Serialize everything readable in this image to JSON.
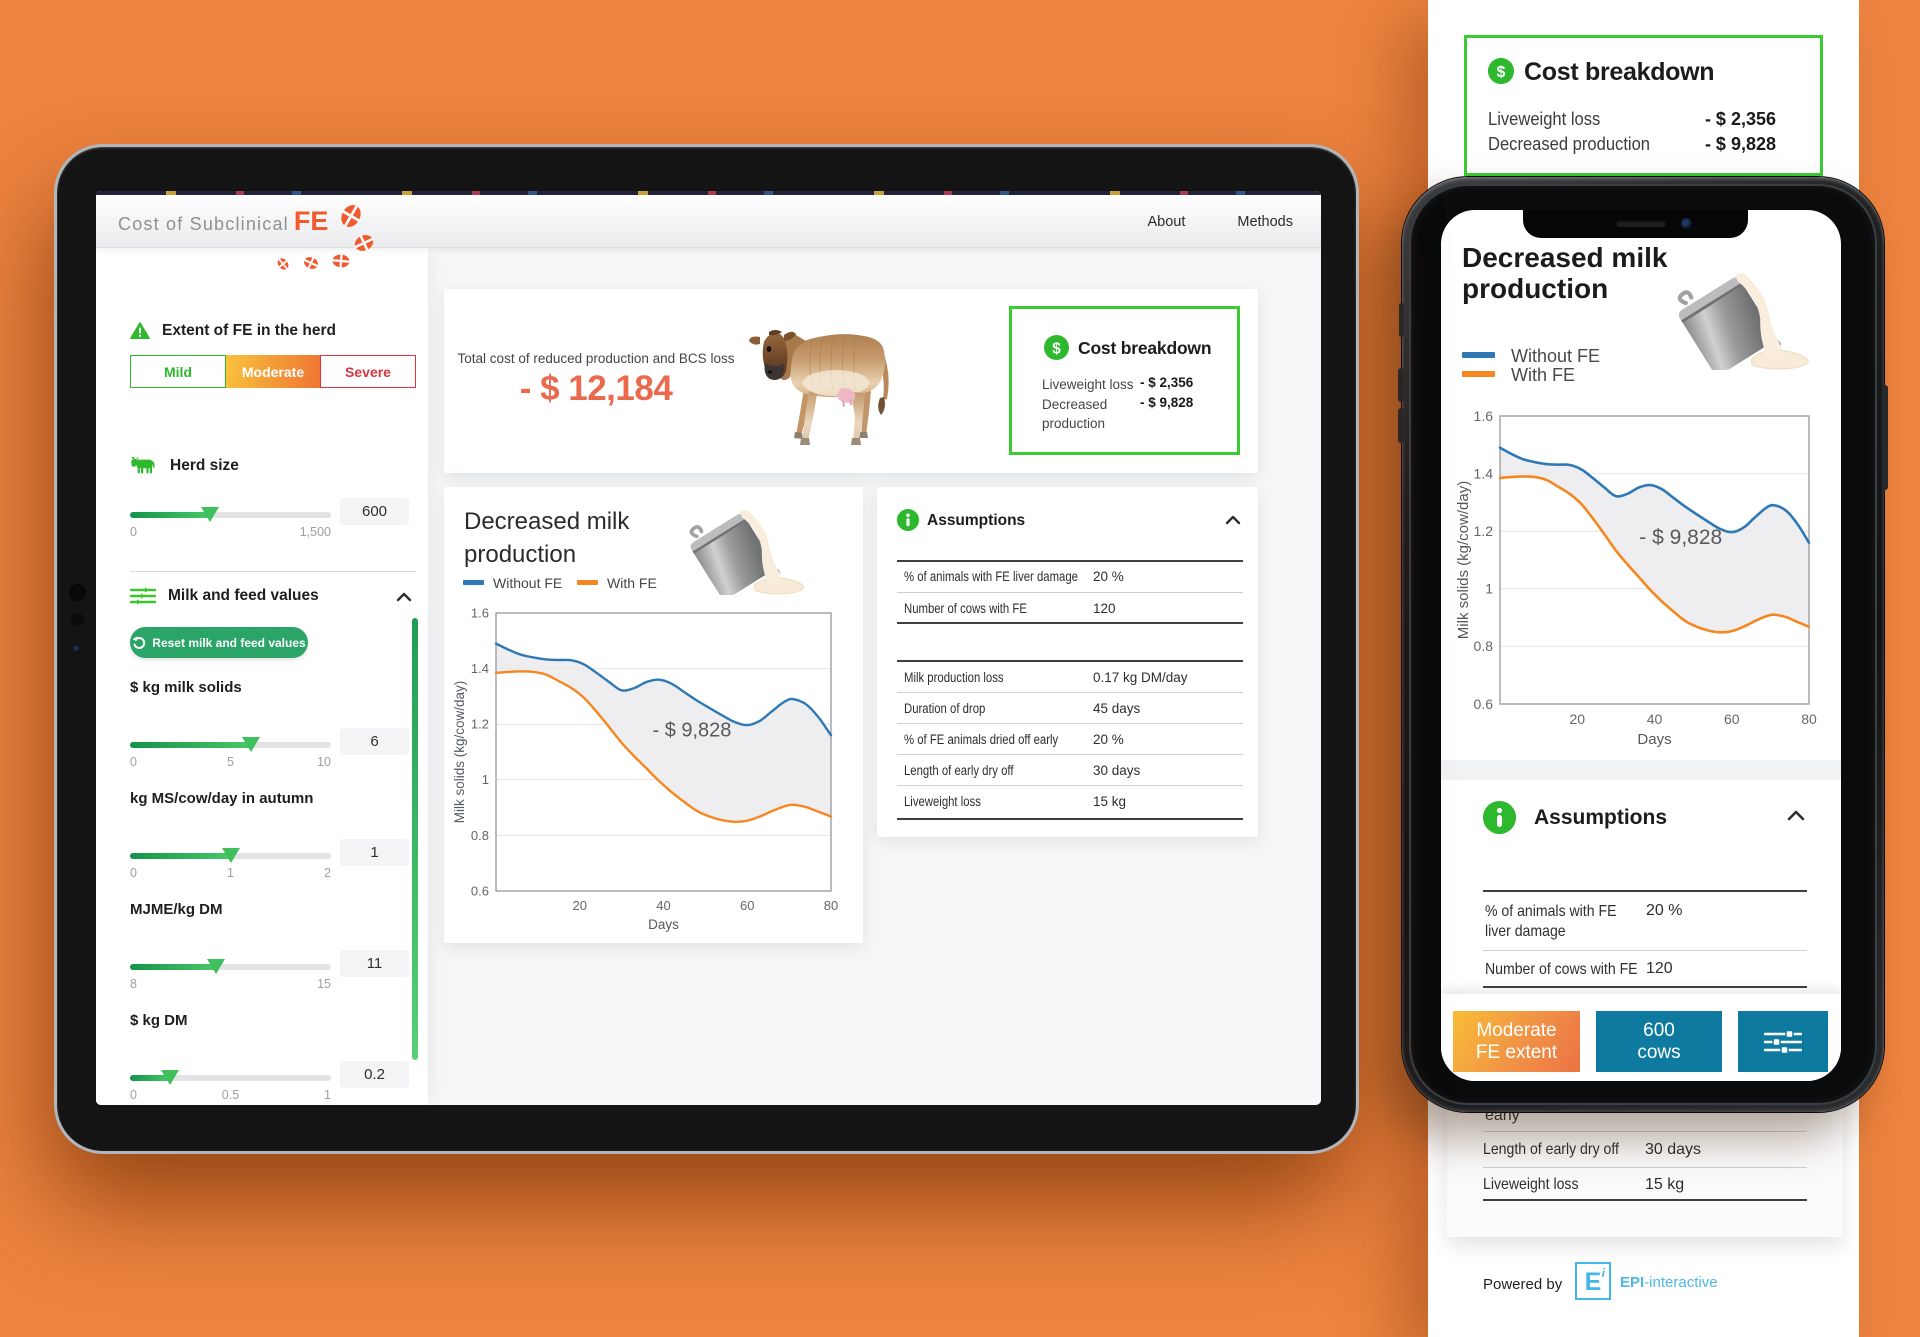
{
  "theme": {
    "background": "#ee8440",
    "accent_orange": "#f15a2e",
    "cost_red_orange": "#ea6a4e",
    "green": "#2eb82e",
    "green_border": "#3ccb35",
    "reset_green": "#2aa567",
    "teal": "#0f7aa0",
    "line_blue": "#2e79b5",
    "line_orange": "#f6861f"
  },
  "tablet": {
    "header": {
      "logo_text": "Cost of Subclinical",
      "logo_accent": "FE",
      "nav": [
        {
          "label": "About"
        },
        {
          "label": "Methods"
        }
      ]
    },
    "sidebar": {
      "fe_extent": {
        "title": "Extent of FE in the herd",
        "options": [
          {
            "label": "Mild"
          },
          {
            "label": "Moderate"
          },
          {
            "label": "Severe"
          }
        ],
        "selected": "Moderate"
      },
      "herd_size": {
        "title": "Herd size",
        "value": "600",
        "min_label": "0",
        "max_label": "1,500",
        "fraction": 0.4
      },
      "milk_feed": {
        "title": "Milk and feed values",
        "reset_label": "Reset milk and feed values",
        "sliders": [
          {
            "label": "$ kg milk solids",
            "value": "6",
            "tick_left": "0",
            "tick_mid": "5",
            "tick_right": "10",
            "fraction": 0.6
          },
          {
            "label": "kg MS/cow/day in autumn",
            "value": "1",
            "tick_left": "0",
            "tick_mid": "1",
            "tick_right": "2",
            "fraction": 0.5
          },
          {
            "label": "MJME/kg DM",
            "value": "11",
            "tick_left": "8",
            "tick_mid": "",
            "tick_right": "15",
            "fraction": 0.4286
          },
          {
            "label": "$ kg DM",
            "value": "0.2",
            "tick_left": "0",
            "tick_mid": "0.5",
            "tick_right": "1",
            "fraction": 0.2
          }
        ]
      }
    },
    "total_cost": {
      "label": "Total cost of reduced production and BCS loss",
      "value": "- $ 12,184"
    },
    "cost_breakdown": {
      "title": "Cost breakdown",
      "rows": [
        {
          "label": "Liveweight loss",
          "value": "- $ 2,356"
        },
        {
          "label": "Decreased production",
          "value": "- $ 9,828"
        }
      ]
    },
    "assumptions": {
      "title": "Assumptions",
      "table1": [
        {
          "label": "% of animals with FE liver damage",
          "value": "20 %"
        },
        {
          "label": "Number of cows with FE",
          "value": "120"
        }
      ],
      "table2": [
        {
          "label": "Milk production loss",
          "value": "0.17 kg DM/day"
        },
        {
          "label": "Duration of drop",
          "value": "45 days"
        },
        {
          "label": "% of FE animals dried off early",
          "value": "20 %"
        },
        {
          "label": "Length of early dry off",
          "value": "30 days"
        },
        {
          "label": "Liveweight loss",
          "value": "15 kg"
        }
      ]
    }
  },
  "phone": {
    "chart_title": "Decreased milk production",
    "assumptions_title": "Assumptions",
    "table": [
      {
        "label": "% of animals with FE liver damage",
        "value": "20 %"
      },
      {
        "label": "Number of cows with FE",
        "value": "120"
      }
    ],
    "buttons": [
      {
        "label_line1": "Moderate",
        "label_line2": "FE extent"
      },
      {
        "label_line1": "600",
        "label_line2": "cows"
      },
      {
        "icon": "sliders-icon"
      }
    ]
  },
  "mobile_page": {
    "cost_breakdown": {
      "title": "Cost breakdown",
      "rows": [
        {
          "label": "Liveweight loss",
          "value": "- $ 2,356"
        },
        {
          "label": "Decreased production",
          "value": "- $ 9,828"
        }
      ]
    },
    "assumptions_bottom": {
      "partial_row_label": "early",
      "rows": [
        {
          "label": "Length of early dry off",
          "value": "30 days"
        },
        {
          "label": "Liveweight loss",
          "value": "15 kg"
        }
      ]
    },
    "footer": {
      "powered_by": "Powered by",
      "logo_letter": "E",
      "logo_sup": "i",
      "brand_bold": "EPI",
      "brand_rest": "-interactive"
    }
  },
  "chart_data": {
    "type": "line",
    "title": "Decreased milk production",
    "xlabel": "Days",
    "ylabel": "Milk solids (kg/cow/day)",
    "xlim": [
      0,
      80
    ],
    "ylim": [
      0.6,
      1.6
    ],
    "xticks": [
      20,
      40,
      60,
      80
    ],
    "yticks": [
      1.6,
      1.4,
      1.2,
      1,
      0.8,
      0.6
    ],
    "grid": "horizontal",
    "legend_position": "top-left",
    "annotation": {
      "x": 46.8,
      "y": 1.155,
      "text": "- $ 9,828"
    },
    "band_fill_between_series": true,
    "series": [
      {
        "name": "Without FE",
        "color": "#2e79b5",
        "points": [
          [
            0,
            1.49
          ],
          [
            3,
            1.468
          ],
          [
            6,
            1.45
          ],
          [
            9,
            1.44
          ],
          [
            12,
            1.433
          ],
          [
            15,
            1.431
          ],
          [
            18,
            1.43
          ],
          [
            21,
            1.415
          ],
          [
            24,
            1.385
          ],
          [
            27,
            1.352
          ],
          [
            30,
            1.322
          ],
          [
            33,
            1.33
          ],
          [
            36,
            1.352
          ],
          [
            39,
            1.36
          ],
          [
            42,
            1.345
          ],
          [
            45,
            1.315
          ],
          [
            48,
            1.285
          ],
          [
            51,
            1.258
          ],
          [
            54,
            1.232
          ],
          [
            57,
            1.208
          ],
          [
            60,
            1.197
          ],
          [
            63,
            1.212
          ],
          [
            66,
            1.248
          ],
          [
            69,
            1.282
          ],
          [
            71,
            1.29
          ],
          [
            74,
            1.272
          ],
          [
            77,
            1.225
          ],
          [
            80,
            1.16
          ]
        ]
      },
      {
        "name": "With FE",
        "color": "#f6861f",
        "points": [
          [
            0,
            1.385
          ],
          [
            3,
            1.388
          ],
          [
            6,
            1.39
          ],
          [
            9,
            1.388
          ],
          [
            12,
            1.378
          ],
          [
            15,
            1.355
          ],
          [
            18,
            1.33
          ],
          [
            21,
            1.295
          ],
          [
            24,
            1.245
          ],
          [
            27,
            1.19
          ],
          [
            30,
            1.133
          ],
          [
            33,
            1.085
          ],
          [
            36,
            1.04
          ],
          [
            39,
            0.995
          ],
          [
            42,
            0.955
          ],
          [
            45,
            0.92
          ],
          [
            48,
            0.888
          ],
          [
            51,
            0.868
          ],
          [
            54,
            0.855
          ],
          [
            57,
            0.849
          ],
          [
            60,
            0.853
          ],
          [
            63,
            0.868
          ],
          [
            66,
            0.888
          ],
          [
            69,
            0.905
          ],
          [
            71,
            0.91
          ],
          [
            74,
            0.902
          ],
          [
            77,
            0.885
          ],
          [
            80,
            0.868
          ]
        ]
      }
    ]
  }
}
